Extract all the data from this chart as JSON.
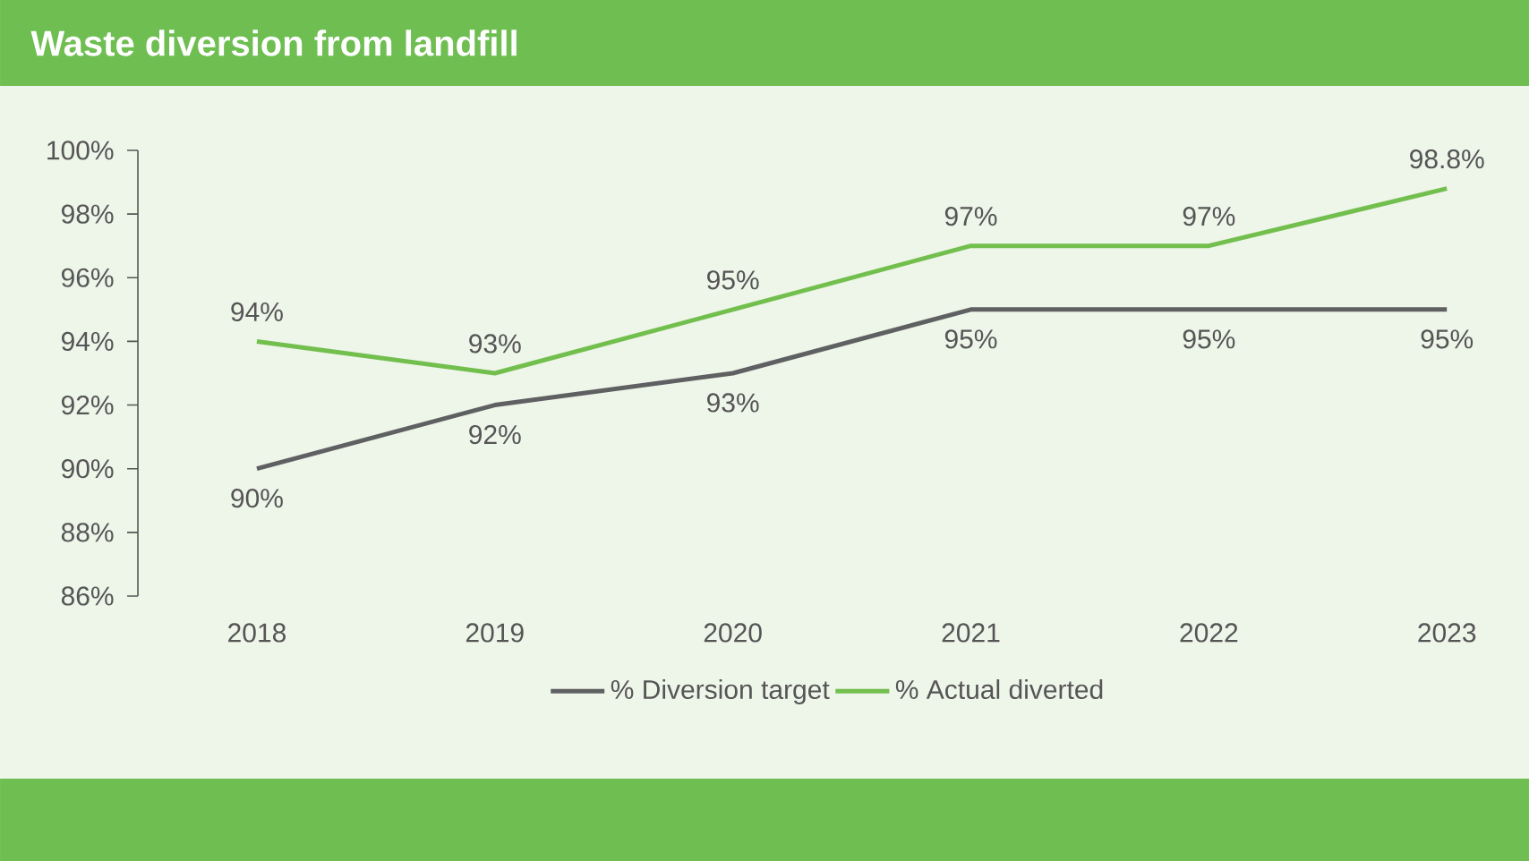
{
  "chart_data": {
    "type": "line",
    "title": "Waste diversion from landfill",
    "categories": [
      "2018",
      "2019",
      "2020",
      "2021",
      "2022",
      "2023"
    ],
    "series": [
      {
        "name": "% Diversion target",
        "color": "#5f6062",
        "values": [
          90,
          92,
          93,
          95,
          95,
          95
        ],
        "value_labels": [
          "90%",
          "92%",
          "93%",
          "95%",
          "95%",
          "95%"
        ]
      },
      {
        "name": "% Actual diverted",
        "color": "#72bf4e",
        "values": [
          94,
          93,
          95,
          97,
          97,
          98.8
        ],
        "value_labels": [
          "94%",
          "93%",
          "95%",
          "97%",
          "97%",
          "98.8%"
        ]
      }
    ],
    "ylim": [
      86,
      100
    ],
    "yticks": [
      {
        "value": 86,
        "label": "86%"
      },
      {
        "value": 88,
        "label": "88%"
      },
      {
        "value": 90,
        "label": "90%"
      },
      {
        "value": 92,
        "label": "92%"
      },
      {
        "value": 94,
        "label": "94%"
      },
      {
        "value": 96,
        "label": "96%"
      },
      {
        "value": 98,
        "label": "98%"
      },
      {
        "value": 100,
        "label": "100%"
      }
    ],
    "grid": false,
    "legend": "bottom",
    "marker": "none",
    "line_style": "solid"
  }
}
